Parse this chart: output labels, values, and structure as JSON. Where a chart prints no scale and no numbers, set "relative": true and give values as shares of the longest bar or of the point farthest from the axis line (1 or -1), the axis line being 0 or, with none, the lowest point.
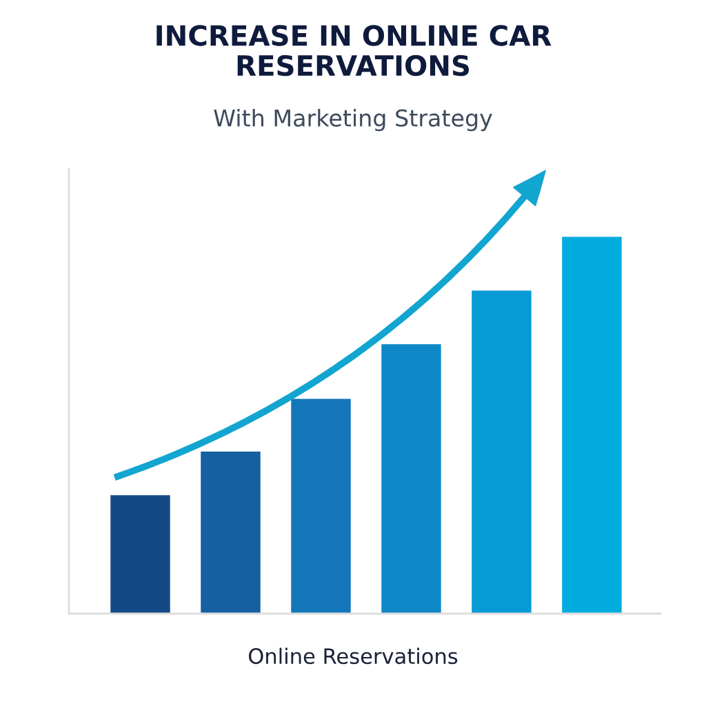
{
  "chart_data": {
    "type": "bar",
    "title": "INCREASE IN ONLINE CAR\nRESERVATIONS",
    "subtitle": "With Marketing Strategy",
    "xlabel": "Online Reservations",
    "categories": [
      null,
      null,
      null,
      null,
      null,
      null
    ],
    "values": [
      0.314,
      0.43,
      0.57,
      0.715,
      0.857,
      1
    ],
    "colors": [
      "#134a85",
      "#1560a0",
      "#1376b8",
      "#0e88c6",
      "#079bd5",
      "#03acdf"
    ],
    "relative": true,
    "grid": false,
    "legend": false
  }
}
